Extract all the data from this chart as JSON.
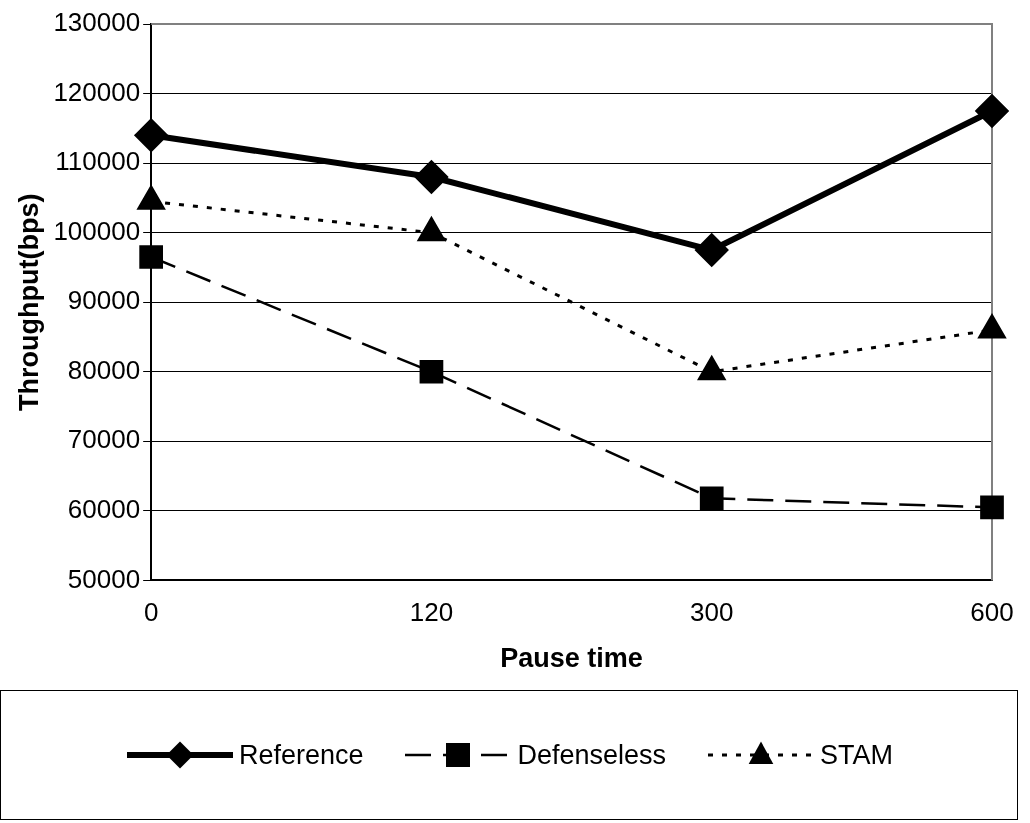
{
  "chart_data": {
    "type": "line",
    "xlabel": "Pause time",
    "ylabel": "Throughput(bps)",
    "categories": [
      "0",
      "120",
      "300",
      "600"
    ],
    "ylim": [
      50000,
      130000
    ],
    "yticks": [
      50000,
      60000,
      70000,
      80000,
      90000,
      100000,
      110000,
      120000,
      130000
    ],
    "grid": "y",
    "legend": "bottom",
    "series": [
      {
        "name": "Reference",
        "color": "#000000",
        "values": [
          114000,
          108000,
          97500,
          117500
        ],
        "marker": "diamond",
        "line_style": "solid"
      },
      {
        "name": "Defenseless",
        "color": "#000000",
        "values": [
          96500,
          80000,
          61800,
          60500
        ],
        "marker": "square",
        "line_style": "dashed"
      },
      {
        "name": "STAM",
        "color": "#000000",
        "values": [
          104500,
          100000,
          80000,
          86000
        ],
        "marker": "triangle",
        "line_style": "dotted"
      }
    ]
  }
}
